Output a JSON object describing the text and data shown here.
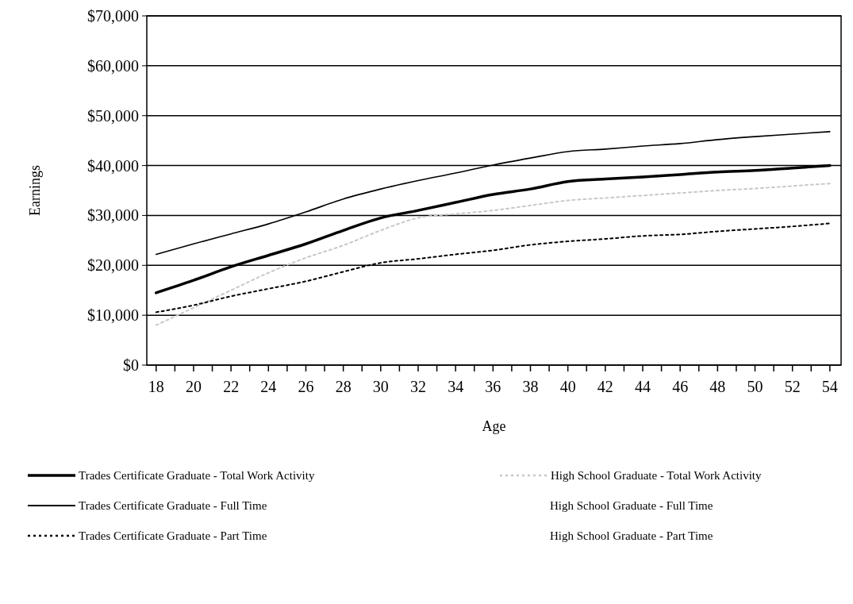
{
  "chart_data": {
    "type": "line",
    "xlabel": "Age",
    "ylabel": "Earnings",
    "x": [
      18,
      20,
      22,
      24,
      26,
      28,
      30,
      32,
      34,
      36,
      38,
      40,
      42,
      44,
      46,
      48,
      50,
      52,
      54
    ],
    "xlim": [
      17.5,
      54.6
    ],
    "xticks": [
      18,
      {
        "value": 19,
        "label": null
      },
      20,
      {
        "value": 21,
        "label": null
      },
      22,
      {
        "value": 23,
        "label": null
      },
      24,
      {
        "value": 25,
        "label": null
      },
      26,
      {
        "value": 27,
        "label": null
      },
      28,
      {
        "value": 29,
        "label": null
      },
      30,
      {
        "value": 31,
        "label": null
      },
      32,
      {
        "value": 33,
        "label": null
      },
      34,
      {
        "value": 35,
        "label": null
      },
      36,
      {
        "value": 37,
        "label": null
      },
      38,
      {
        "value": 39,
        "label": null
      },
      40,
      {
        "value": 41,
        "label": null
      },
      42,
      {
        "value": 43,
        "label": null
      },
      44,
      {
        "value": 45,
        "label": null
      },
      46,
      {
        "value": 47,
        "label": null
      },
      48,
      {
        "value": 49,
        "label": null
      },
      50,
      {
        "value": 51,
        "label": null
      },
      52,
      {
        "value": 53,
        "label": null
      },
      54
    ],
    "ylim": [
      0,
      70000
    ],
    "yticks": [
      {
        "value": 0,
        "label": "$0"
      },
      {
        "value": 10000,
        "label": "$10,000"
      },
      {
        "value": 20000,
        "label": "$20,000"
      },
      {
        "value": 30000,
        "label": "$30,000"
      },
      {
        "value": 40000,
        "label": "$40,000"
      },
      {
        "value": 50000,
        "label": "$50,000"
      },
      {
        "value": 60000,
        "label": "$60,000"
      },
      {
        "value": 70000,
        "label": "$70,000"
      }
    ],
    "grid": "y",
    "legend": "bottom",
    "marker": "none",
    "series": [
      {
        "name": "Trades Certificate Graduate - Total Work Activity",
        "color": "#000000",
        "line_style": "solid",
        "values": [
          14500,
          17000,
          19700,
          22000,
          24300,
          27000,
          29500,
          31000,
          32600,
          34200,
          35300,
          36800,
          37300,
          37700,
          38200,
          38700,
          39000,
          39500,
          40000
        ]
      },
      {
        "name": "High School Graduate - Total Work Activity",
        "color": "#c8c8c8",
        "line_style": "dotted",
        "values": [
          8000,
          11500,
          15000,
          18500,
          21500,
          24000,
          27000,
          29500,
          30300,
          31000,
          32000,
          33000,
          33500,
          34000,
          34500,
          35000,
          35400,
          35900,
          36400
        ]
      },
      {
        "name": "Trades Certificate Graduate - Full Time",
        "color": "#000000",
        "line_style": "solid",
        "values": [
          22200,
          24300,
          26300,
          28300,
          30700,
          33300,
          35300,
          37000,
          38500,
          40100,
          41500,
          42800,
          43300,
          43900,
          44400,
          45200,
          45800,
          46300,
          46800
        ]
      },
      {
        "name": "Trades Certificate Graduate - Part Time",
        "color": "#000000",
        "line_style": "dotted",
        "values": [
          10600,
          12000,
          13800,
          15300,
          16800,
          18700,
          20500,
          21300,
          22200,
          23000,
          24100,
          24800,
          25300,
          25900,
          26200,
          26800,
          27300,
          27800,
          28400
        ]
      }
    ],
    "annotations": [
      "High School Graduate - Full Time",
      "High School Graduate - Part Time"
    ]
  }
}
